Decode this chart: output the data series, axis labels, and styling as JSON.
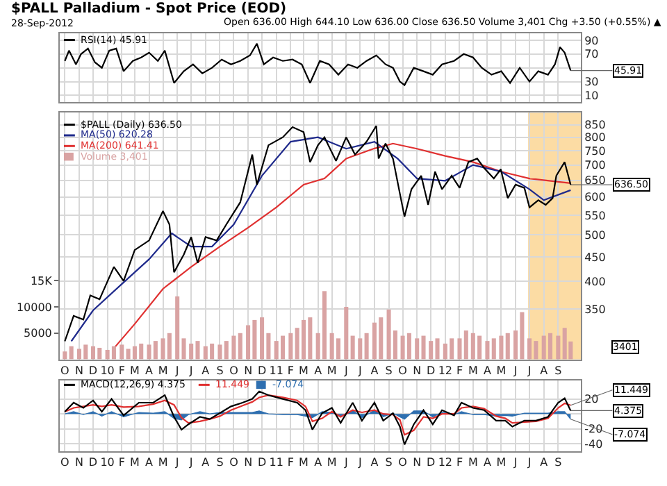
{
  "chart_data": [
    {
      "type": "line",
      "title": "$PALL Palladium - Spot Price (EOD)",
      "subtitle": "28-Sep-2012",
      "annotations": [
        "Open 636.00 High 644.10 Low 636.00 Close 636.50 Volume 3,401 Chg +3.50 (+0.55%) ▲",
        {
          "text": "45.91",
          "x": "2012-09-28",
          "y": 45.91
        }
      ],
      "series": [
        {
          "name": "RSI(14) 45.91",
          "color": "#000000",
          "x": [
            "2009-10-01",
            "2009-10-10",
            "2009-10-25",
            "2009-11-05",
            "2009-11-20",
            "2009-12-05",
            "2009-12-20",
            "2010-01-05",
            "2010-01-20",
            "2010-02-05",
            "2010-02-25",
            "2010-03-15",
            "2010-04-01",
            "2010-04-20",
            "2010-05-05",
            "2010-05-25",
            "2010-06-15",
            "2010-07-05",
            "2010-07-25",
            "2010-08-15",
            "2010-09-05",
            "2010-09-25",
            "2010-10-15",
            "2010-11-05",
            "2010-11-20",
            "2010-12-05",
            "2010-12-25",
            "2011-01-15",
            "2011-02-05",
            "2011-02-25",
            "2011-03-15",
            "2011-04-05",
            "2011-04-25",
            "2011-05-15",
            "2011-06-05",
            "2011-06-25",
            "2011-07-15",
            "2011-08-05",
            "2011-08-25",
            "2011-09-10",
            "2011-09-25",
            "2011-10-05",
            "2011-10-25",
            "2011-11-15",
            "2011-12-05",
            "2011-12-25",
            "2012-01-20",
            "2012-02-10",
            "2012-03-01",
            "2012-03-20",
            "2012-04-10",
            "2012-05-01",
            "2012-05-20",
            "2012-06-10",
            "2012-07-01",
            "2012-07-20",
            "2012-08-10",
            "2012-08-25",
            "2012-09-05",
            "2012-09-15",
            "2012-09-28"
          ],
          "values": [
            60,
            75,
            55,
            70,
            78,
            58,
            50,
            75,
            78,
            45,
            60,
            65,
            72,
            60,
            75,
            28,
            45,
            55,
            42,
            50,
            62,
            55,
            60,
            68,
            85,
            55,
            65,
            60,
            62,
            55,
            28,
            60,
            55,
            40,
            55,
            50,
            60,
            68,
            55,
            50,
            30,
            25,
            50,
            45,
            40,
            55,
            60,
            70,
            65,
            50,
            40,
            45,
            28,
            50,
            30,
            45,
            40,
            55,
            80,
            72,
            45.91
          ]
        }
      ],
      "xlim": [
        "2009-09-20",
        "2012-10-20"
      ],
      "xticks": [
        {
          "value": "2009-10-01",
          "label": null
        },
        {
          "value": "2009-11-01",
          "label": null
        },
        {
          "value": "2009-12-01",
          "label": null
        },
        {
          "value": "2010-01-01",
          "label": null
        },
        {
          "value": "2010-02-01",
          "label": null
        },
        {
          "value": "2010-03-01",
          "label": null
        },
        {
          "value": "2010-04-01",
          "label": null
        },
        {
          "value": "2010-05-01",
          "label": null
        },
        {
          "value": "2010-06-01",
          "label": null
        },
        {
          "value": "2010-07-01",
          "label": null
        },
        {
          "value": "2010-08-01",
          "label": null
        },
        {
          "value": "2010-09-01",
          "label": null
        },
        {
          "value": "2010-10-01",
          "label": null
        },
        {
          "value": "2010-11-01",
          "label": null
        },
        {
          "value": "2010-12-01",
          "label": null
        },
        {
          "value": "2011-01-01",
          "label": null
        },
        {
          "value": "2011-02-01",
          "label": null
        },
        {
          "value": "2011-03-01",
          "label": null
        },
        {
          "value": "2011-04-01",
          "label": null
        },
        {
          "value": "2011-05-01",
          "label": null
        },
        {
          "value": "2011-06-01",
          "label": null
        },
        {
          "value": "2011-07-01",
          "label": null
        },
        {
          "value": "2011-08-01",
          "label": null
        },
        {
          "value": "2011-09-01",
          "label": null
        },
        {
          "value": "2011-10-01",
          "label": null
        },
        {
          "value": "2011-11-01",
          "label": null
        },
        {
          "value": "2011-12-01",
          "label": null
        },
        {
          "value": "2012-01-01",
          "label": null
        },
        {
          "value": "2012-02-01",
          "label": null
        },
        {
          "value": "2012-03-01",
          "label": null
        },
        {
          "value": "2012-04-01",
          "label": null
        },
        {
          "value": "2012-05-01",
          "label": null
        },
        {
          "value": "2012-06-01",
          "label": null
        },
        {
          "value": "2012-07-01",
          "label": null
        },
        {
          "value": "2012-08-01",
          "label": null
        },
        {
          "value": "2012-09-01",
          "label": null
        }
      ],
      "ylim": [
        0,
        100
      ],
      "yticks": [
        10,
        30,
        {
          "value": 50,
          "label": null
        },
        70,
        90
      ],
      "tick_labels": "y",
      "grid": true,
      "legend": "top left"
    },
    {
      "type": "line",
      "log": "y",
      "annotations": [
        {
          "text": "636.50",
          "x": "2012-09-28",
          "y": 636.5
        },
        "3401"
      ],
      "series": [
        {
          "name": "Volume 3,401",
          "type": "bar",
          "axis": "y2",
          "color": "#d9a3a3",
          "x": [
            "2009-10-01",
            "2009-10-15",
            "2009-11-01",
            "2009-11-15",
            "2009-12-01",
            "2009-12-15",
            "2010-01-01",
            "2010-01-15",
            "2010-02-01",
            "2010-02-15",
            "2010-03-01",
            "2010-03-15",
            "2010-04-01",
            "2010-04-15",
            "2010-05-01",
            "2010-05-15",
            "2010-06-01",
            "2010-06-15",
            "2010-07-01",
            "2010-07-15",
            "2010-08-01",
            "2010-08-15",
            "2010-09-01",
            "2010-09-15",
            "2010-10-01",
            "2010-10-15",
            "2010-11-01",
            "2010-11-15",
            "2010-12-01",
            "2010-12-15",
            "2011-01-01",
            "2011-01-15",
            "2011-02-01",
            "2011-02-15",
            "2011-03-01",
            "2011-03-15",
            "2011-04-01",
            "2011-04-15",
            "2011-05-01",
            "2011-05-15",
            "2011-06-01",
            "2011-06-15",
            "2011-07-01",
            "2011-07-15",
            "2011-08-01",
            "2011-08-15",
            "2011-09-01",
            "2011-09-15",
            "2011-10-01",
            "2011-10-15",
            "2011-11-01",
            "2011-11-15",
            "2011-12-01",
            "2011-12-15",
            "2012-01-01",
            "2012-01-15",
            "2012-02-01",
            "2012-02-15",
            "2012-03-01",
            "2012-03-15",
            "2012-04-01",
            "2012-04-15",
            "2012-05-01",
            "2012-05-15",
            "2012-06-01",
            "2012-06-15",
            "2012-07-01",
            "2012-07-15",
            "2012-08-01",
            "2012-08-15",
            "2012-09-01",
            "2012-09-15",
            "2012-09-28"
          ],
          "values": [
            1500,
            2500,
            2000,
            2800,
            2500,
            2200,
            1800,
            2500,
            2800,
            2000,
            2500,
            3000,
            2800,
            3500,
            4000,
            5000,
            12000,
            4000,
            3000,
            3500,
            2500,
            3000,
            2800,
            3500,
            4500,
            5000,
            6500,
            7500,
            8000,
            5000,
            3500,
            4500,
            5000,
            6000,
            7500,
            8000,
            5000,
            13000,
            5000,
            4000,
            10000,
            4500,
            4000,
            5000,
            7000,
            8000,
            9500,
            5500,
            4500,
            5000,
            4000,
            4500,
            3500,
            4000,
            3000,
            4000,
            4000,
            5500,
            5000,
            4500,
            3500,
            4000,
            4500,
            5000,
            5500,
            9000,
            4000,
            3500,
            4500,
            5000,
            4500,
            6000,
            3401
          ]
        },
        {
          "name": "MA(200) 641.41",
          "color": "#e03030",
          "x": [
            "2010-01-15",
            "2010-03-01",
            "2010-05-01",
            "2010-07-01",
            "2010-09-01",
            "2010-11-01",
            "2011-01-01",
            "2011-03-01",
            "2011-04-15",
            "2011-06-01",
            "2011-08-01",
            "2011-09-10",
            "2011-11-01",
            "2012-01-01",
            "2012-03-01",
            "2012-05-01",
            "2012-07-01",
            "2012-09-28"
          ],
          "values": [
            290,
            326,
            386,
            429,
            473,
            518,
            571,
            637,
            656,
            722,
            758,
            776,
            757,
            731,
            710,
            678,
            656,
            641.41
          ]
        },
        {
          "name": "MA(50) 620.28",
          "color": "#1f2a8c",
          "x": [
            "2009-10-15",
            "2009-12-01",
            "2010-02-01",
            "2010-04-01",
            "2010-05-20",
            "2010-07-01",
            "2010-08-15",
            "2010-10-01",
            "2010-12-01",
            "2011-02-01",
            "2011-04-01",
            "2011-06-01",
            "2011-08-01",
            "2011-09-20",
            "2011-11-01",
            "2012-01-01",
            "2012-03-01",
            "2012-05-01",
            "2012-07-01",
            "2012-08-01",
            "2012-09-28"
          ],
          "values": [
            300,
            348,
            395,
            445,
            504,
            473,
            473,
            526,
            665,
            783,
            800,
            757,
            783,
            722,
            656,
            649,
            700,
            678,
            623,
            591,
            620.28
          ]
        },
        {
          "name": "$PALL (Daily) 636.50",
          "color": "#000000",
          "x": [
            "2009-10-01",
            "2009-10-20",
            "2009-11-10",
            "2009-11-25",
            "2009-12-15",
            "2010-01-15",
            "2010-02-05",
            "2010-03-01",
            "2010-04-01",
            "2010-05-01",
            "2010-05-15",
            "2010-05-25",
            "2010-06-15",
            "2010-07-01",
            "2010-07-15",
            "2010-08-01",
            "2010-08-25",
            "2010-09-15",
            "2010-10-15",
            "2010-11-10",
            "2010-11-20",
            "2010-12-15",
            "2011-01-15",
            "2011-02-05",
            "2011-03-01",
            "2011-03-15",
            "2011-04-01",
            "2011-04-15",
            "2011-05-10",
            "2011-06-01",
            "2011-06-20",
            "2011-07-15",
            "2011-08-05",
            "2011-08-10",
            "2011-08-25",
            "2011-09-10",
            "2011-09-25",
            "2011-10-05",
            "2011-10-20",
            "2011-11-10",
            "2011-11-25",
            "2011-12-10",
            "2011-12-25",
            "2012-01-15",
            "2012-02-01",
            "2012-02-20",
            "2012-03-10",
            "2012-03-25",
            "2012-04-15",
            "2012-04-30",
            "2012-05-15",
            "2012-06-01",
            "2012-06-20",
            "2012-07-01",
            "2012-07-20",
            "2012-08-05",
            "2012-08-20",
            "2012-08-28",
            "2012-09-15",
            "2012-09-28"
          ],
          "values": [
            300,
            339,
            333,
            374,
            367,
            429,
            401,
            465,
            487,
            561,
            526,
            418,
            455,
            495,
            437,
            495,
            487,
            526,
            585,
            736,
            637,
            770,
            800,
            840,
            820,
            710,
            770,
            800,
            714,
            800,
            736,
            783,
            845,
            722,
            776,
            722,
            610,
            546,
            623,
            665,
            578,
            678,
            623,
            665,
            627,
            710,
            722,
            690,
            656,
            686,
            597,
            637,
            627,
            571,
            591,
            578,
            597,
            665,
            710,
            636.5
          ]
        }
      ],
      "bands": [
        {
          "axis": "x",
          "from": "2012-06-28",
          "to": "2012-10-20",
          "color": "#fbd38d"
        }
      ],
      "xlim": [
        "2009-09-20",
        "2012-10-20"
      ],
      "xticks": [
        {
          "value": "2009-10-01",
          "label": "O"
        },
        {
          "value": "2009-11-01",
          "label": "N"
        },
        {
          "value": "2009-12-01",
          "label": "D"
        },
        {
          "value": "2010-01-01",
          "label": "10"
        },
        {
          "value": "2010-02-01",
          "label": "F"
        },
        {
          "value": "2010-03-01",
          "label": "M"
        },
        {
          "value": "2010-04-01",
          "label": "A"
        },
        {
          "value": "2010-05-01",
          "label": "M"
        },
        {
          "value": "2010-06-01",
          "label": "J"
        },
        {
          "value": "2010-07-01",
          "label": "J"
        },
        {
          "value": "2010-08-01",
          "label": "A"
        },
        {
          "value": "2010-09-01",
          "label": "S"
        },
        {
          "value": "2010-10-01",
          "label": "O"
        },
        {
          "value": "2010-11-01",
          "label": "N"
        },
        {
          "value": "2010-12-01",
          "label": "D"
        },
        {
          "value": "2011-01-01",
          "label": "11"
        },
        {
          "value": "2011-02-01",
          "label": "F"
        },
        {
          "value": "2011-03-01",
          "label": "M"
        },
        {
          "value": "2011-04-01",
          "label": "A"
        },
        {
          "value": "2011-05-01",
          "label": "M"
        },
        {
          "value": "2011-06-01",
          "label": "J"
        },
        {
          "value": "2011-07-01",
          "label": "J"
        },
        {
          "value": "2011-08-01",
          "label": "A"
        },
        {
          "value": "2011-09-01",
          "label": "S"
        },
        {
          "value": "2011-10-01",
          "label": "O"
        },
        {
          "value": "2011-11-01",
          "label": "N"
        },
        {
          "value": "2011-12-01",
          "label": "D"
        },
        {
          "value": "2012-01-01",
          "label": "12"
        },
        {
          "value": "2012-02-01",
          "label": "F"
        },
        {
          "value": "2012-03-01",
          "label": "M"
        },
        {
          "value": "2012-04-01",
          "label": "A"
        },
        {
          "value": "2012-05-01",
          "label": "M"
        },
        {
          "value": "2012-06-01",
          "label": "J"
        },
        {
          "value": "2012-07-01",
          "label": "J"
        },
        {
          "value": "2012-08-01",
          "label": "A"
        },
        {
          "value": "2012-09-01",
          "label": "S"
        }
      ],
      "ylim": [
        275,
        900
      ],
      "yticks": [
        350,
        400,
        450,
        500,
        550,
        600,
        650,
        700,
        750,
        800,
        850
      ],
      "y2lim": [
        0,
        47000
      ],
      "y2ticks": [
        5000,
        10000,
        {
          "value": 15000,
          "label": "15K"
        }
      ],
      "grid": true,
      "legend": "top left"
    },
    {
      "type": "line",
      "annotations": [
        {
          "text": "11.449",
          "x": "2012-09-28",
          "y": 11.449
        },
        {
          "text": "4.375",
          "x": "2012-09-28",
          "y": 4.375
        },
        {
          "text": "-7.074",
          "x": "2012-09-28",
          "y": -7.074
        }
      ],
      "series": [
        {
          "name": "-7.074",
          "type": "area",
          "color": "#2e6fb0",
          "x": [
            "2009-10-01",
            "2009-10-20",
            "2009-11-10",
            "2009-12-01",
            "2009-12-20",
            "2010-01-10",
            "2010-02-05",
            "2010-03-10",
            "2010-04-10",
            "2010-05-05",
            "2010-05-25",
            "2010-06-10",
            "2010-06-25",
            "2010-07-20",
            "2010-08-10",
            "2010-09-01",
            "2010-09-25",
            "2010-10-20",
            "2010-11-10",
            "2010-11-25",
            "2010-12-15",
            "2011-01-15",
            "2011-02-15",
            "2011-03-05",
            "2011-03-20",
            "2011-04-10",
            "2011-05-01",
            "2011-05-20",
            "2011-06-15",
            "2011-07-05",
            "2011-08-01",
            "2011-08-20",
            "2011-09-10",
            "2011-09-25",
            "2011-10-05",
            "2011-10-25",
            "2011-11-15",
            "2011-12-05",
            "2011-12-25",
            "2012-01-20",
            "2012-02-05",
            "2012-03-01",
            "2012-03-25",
            "2012-04-20",
            "2012-05-10",
            "2012-05-25",
            "2012-06-20",
            "2012-07-15",
            "2012-08-10",
            "2012-09-01",
            "2012-09-15",
            "2012-09-28"
          ],
          "values": [
            0,
            3,
            -1,
            3,
            -3,
            3,
            -4,
            2,
            1,
            3,
            -6,
            -8,
            -1,
            3,
            0,
            2,
            2,
            2,
            2,
            4,
            0,
            -1,
            -1,
            -3,
            -5,
            3,
            2,
            -4,
            5,
            -5,
            5,
            -4,
            1,
            -4,
            -7,
            4,
            4,
            -4,
            2,
            -1,
            3,
            -1,
            -1,
            -3,
            -2,
            -3,
            1,
            1,
            1,
            3,
            3,
            -7.074
          ]
        },
        {
          "name": "11.449",
          "color": "#e03030",
          "x": [
            "2009-10-01",
            "2009-10-20",
            "2009-11-10",
            "2009-12-01",
            "2009-12-20",
            "2010-01-10",
            "2010-02-05",
            "2010-03-10",
            "2010-04-10",
            "2010-05-05",
            "2010-05-25",
            "2010-06-10",
            "2010-06-25",
            "2010-07-20",
            "2010-08-10",
            "2010-09-01",
            "2010-09-25",
            "2010-10-20",
            "2010-11-10",
            "2010-11-25",
            "2010-12-15",
            "2011-01-15",
            "2011-02-15",
            "2011-03-05",
            "2011-03-20",
            "2011-04-10",
            "2011-05-01",
            "2011-05-20",
            "2011-06-15",
            "2011-07-05",
            "2011-08-01",
            "2011-08-20",
            "2011-09-10",
            "2011-09-25",
            "2011-10-05",
            "2011-10-25",
            "2011-11-15",
            "2011-12-05",
            "2011-12-25",
            "2012-01-20",
            "2012-02-05",
            "2012-03-01",
            "2012-03-25",
            "2012-04-20",
            "2012-05-10",
            "2012-05-25",
            "2012-06-20",
            "2012-07-15",
            "2012-08-10",
            "2012-09-01",
            "2012-09-15",
            "2012-09-28"
          ],
          "values": [
            3,
            8,
            10,
            12,
            10,
            12,
            9,
            10,
            13,
            18,
            12,
            -5,
            -12,
            -10,
            -7,
            -3,
            5,
            11,
            16,
            22,
            25,
            22,
            18,
            10,
            -10,
            -6,
            3,
            -4,
            5,
            2,
            5,
            0,
            -1,
            -8,
            -28,
            -22,
            -4,
            -6,
            0,
            0,
            8,
            10,
            7,
            -3,
            -6,
            -12,
            -11,
            -10,
            -6,
            8,
            14,
            11.449
          ]
        },
        {
          "name": "MACD(12,26,9) 4.375",
          "color": "#000000",
          "x": [
            "2009-10-01",
            "2009-10-20",
            "2009-11-10",
            "2009-12-01",
            "2009-12-20",
            "2010-01-10",
            "2010-02-05",
            "2010-03-10",
            "2010-04-10",
            "2010-05-05",
            "2010-05-25",
            "2010-06-10",
            "2010-06-25",
            "2010-07-20",
            "2010-08-10",
            "2010-09-01",
            "2010-09-25",
            "2010-10-20",
            "2010-11-10",
            "2010-11-25",
            "2010-12-15",
            "2011-01-15",
            "2011-02-15",
            "2011-03-05",
            "2011-03-20",
            "2011-04-10",
            "2011-05-01",
            "2011-05-20",
            "2011-06-15",
            "2011-07-05",
            "2011-08-01",
            "2011-08-20",
            "2011-09-10",
            "2011-09-25",
            "2011-10-05",
            "2011-10-25",
            "2011-11-15",
            "2011-12-05",
            "2011-12-25",
            "2012-01-20",
            "2012-02-05",
            "2012-03-01",
            "2012-03-25",
            "2012-04-20",
            "2012-05-10",
            "2012-05-25",
            "2012-06-20",
            "2012-07-15",
            "2012-08-10",
            "2012-09-01",
            "2012-09-15",
            "2012-09-28"
          ],
          "values": [
            3,
            15,
            8,
            18,
            3,
            20,
            -2,
            15,
            15,
            25,
            -4,
            -21,
            -14,
            -4,
            -7,
            1,
            10,
            15,
            20,
            30,
            25,
            20,
            15,
            5,
            -21,
            1,
            8,
            -12,
            15,
            -9,
            15,
            -9,
            1,
            -17,
            -41,
            -14,
            5,
            -14,
            5,
            -2,
            15,
            8,
            5,
            -9,
            -9,
            -17,
            -9,
            -9,
            -4,
            15,
            21,
            4.375
          ]
        }
      ],
      "xlim": [
        "2009-09-20",
        "2012-10-20"
      ],
      "xticks": [
        {
          "value": "2009-10-01",
          "label": "O"
        },
        {
          "value": "2009-11-01",
          "label": "N"
        },
        {
          "value": "2009-12-01",
          "label": "D"
        },
        {
          "value": "2010-01-01",
          "label": "10"
        },
        {
          "value": "2010-02-01",
          "label": "F"
        },
        {
          "value": "2010-03-01",
          "label": "M"
        },
        {
          "value": "2010-04-01",
          "label": "A"
        },
        {
          "value": "2010-05-01",
          "label": "M"
        },
        {
          "value": "2010-06-01",
          "label": "J"
        },
        {
          "value": "2010-07-01",
          "label": "J"
        },
        {
          "value": "2010-08-01",
          "label": "A"
        },
        {
          "value": "2010-09-01",
          "label": "S"
        },
        {
          "value": "2010-10-01",
          "label": "O"
        },
        {
          "value": "2010-11-01",
          "label": "N"
        },
        {
          "value": "2010-12-01",
          "label": "D"
        },
        {
          "value": "2011-01-01",
          "label": "11"
        },
        {
          "value": "2011-02-01",
          "label": "F"
        },
        {
          "value": "2011-03-01",
          "label": "M"
        },
        {
          "value": "2011-04-01",
          "label": "A"
        },
        {
          "value": "2011-05-01",
          "label": "M"
        },
        {
          "value": "2011-06-01",
          "label": "J"
        },
        {
          "value": "2011-07-01",
          "label": "J"
        },
        {
          "value": "2011-08-01",
          "label": "A"
        },
        {
          "value": "2011-09-01",
          "label": "S"
        },
        {
          "value": "2011-10-01",
          "label": "O"
        },
        {
          "value": "2011-11-01",
          "label": "N"
        },
        {
          "value": "2011-12-01",
          "label": "D"
        },
        {
          "value": "2012-01-01",
          "label": "12"
        },
        {
          "value": "2012-02-01",
          "label": "F"
        },
        {
          "value": "2012-03-01",
          "label": "M"
        },
        {
          "value": "2012-04-01",
          "label": "A"
        },
        {
          "value": "2012-05-01",
          "label": "M"
        },
        {
          "value": "2012-06-01",
          "label": "J"
        },
        {
          "value": "2012-07-01",
          "label": "J"
        },
        {
          "value": "2012-08-01",
          "label": "A"
        },
        {
          "value": "2012-09-01",
          "label": "S"
        }
      ],
      "ylim": [
        -50,
        45
      ],
      "yticks": [
        -40,
        -20,
        {
          "value": 0,
          "label": null
        },
        20
      ],
      "grid": true,
      "legend": "top left"
    }
  ]
}
